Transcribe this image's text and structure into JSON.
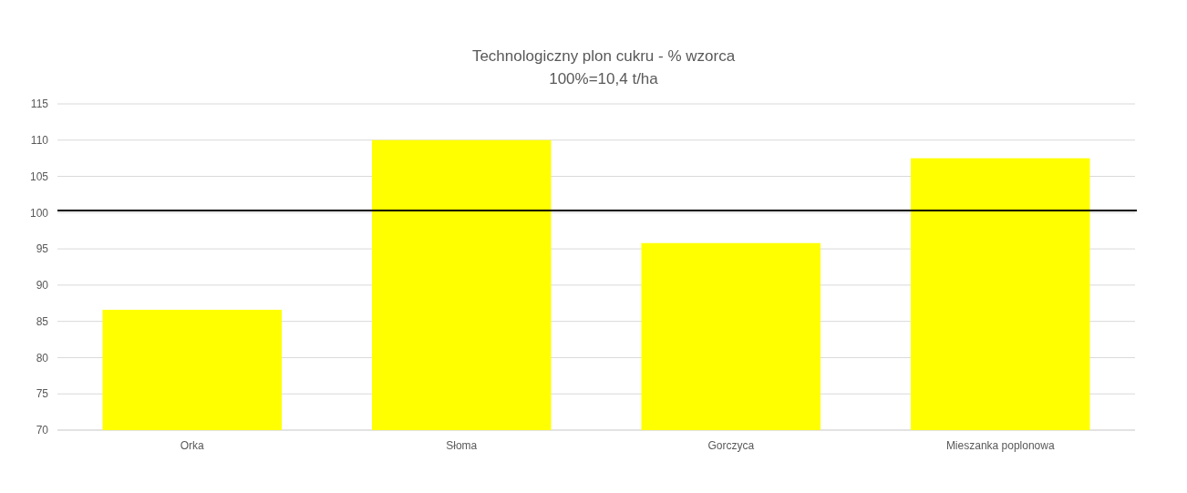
{
  "chart_data": {
    "type": "bar",
    "title": "Technologiczny plon cukru - % wzorca",
    "subtitle": "100%=10,4 t/ha",
    "categories": [
      "Orka",
      "Słoma",
      "Gorczyca",
      "Mieszanka poplonowa"
    ],
    "values": [
      86.6,
      110.0,
      95.8,
      107.5
    ],
    "color": "#ffff00",
    "ylim": [
      70,
      115
    ],
    "yticks": [
      70,
      75,
      80,
      85,
      90,
      95,
      100,
      105,
      110,
      115
    ],
    "grid": "y",
    "ref_lines": [
      {
        "axis": "y",
        "value": 100.3,
        "color": "#000000"
      }
    ]
  }
}
